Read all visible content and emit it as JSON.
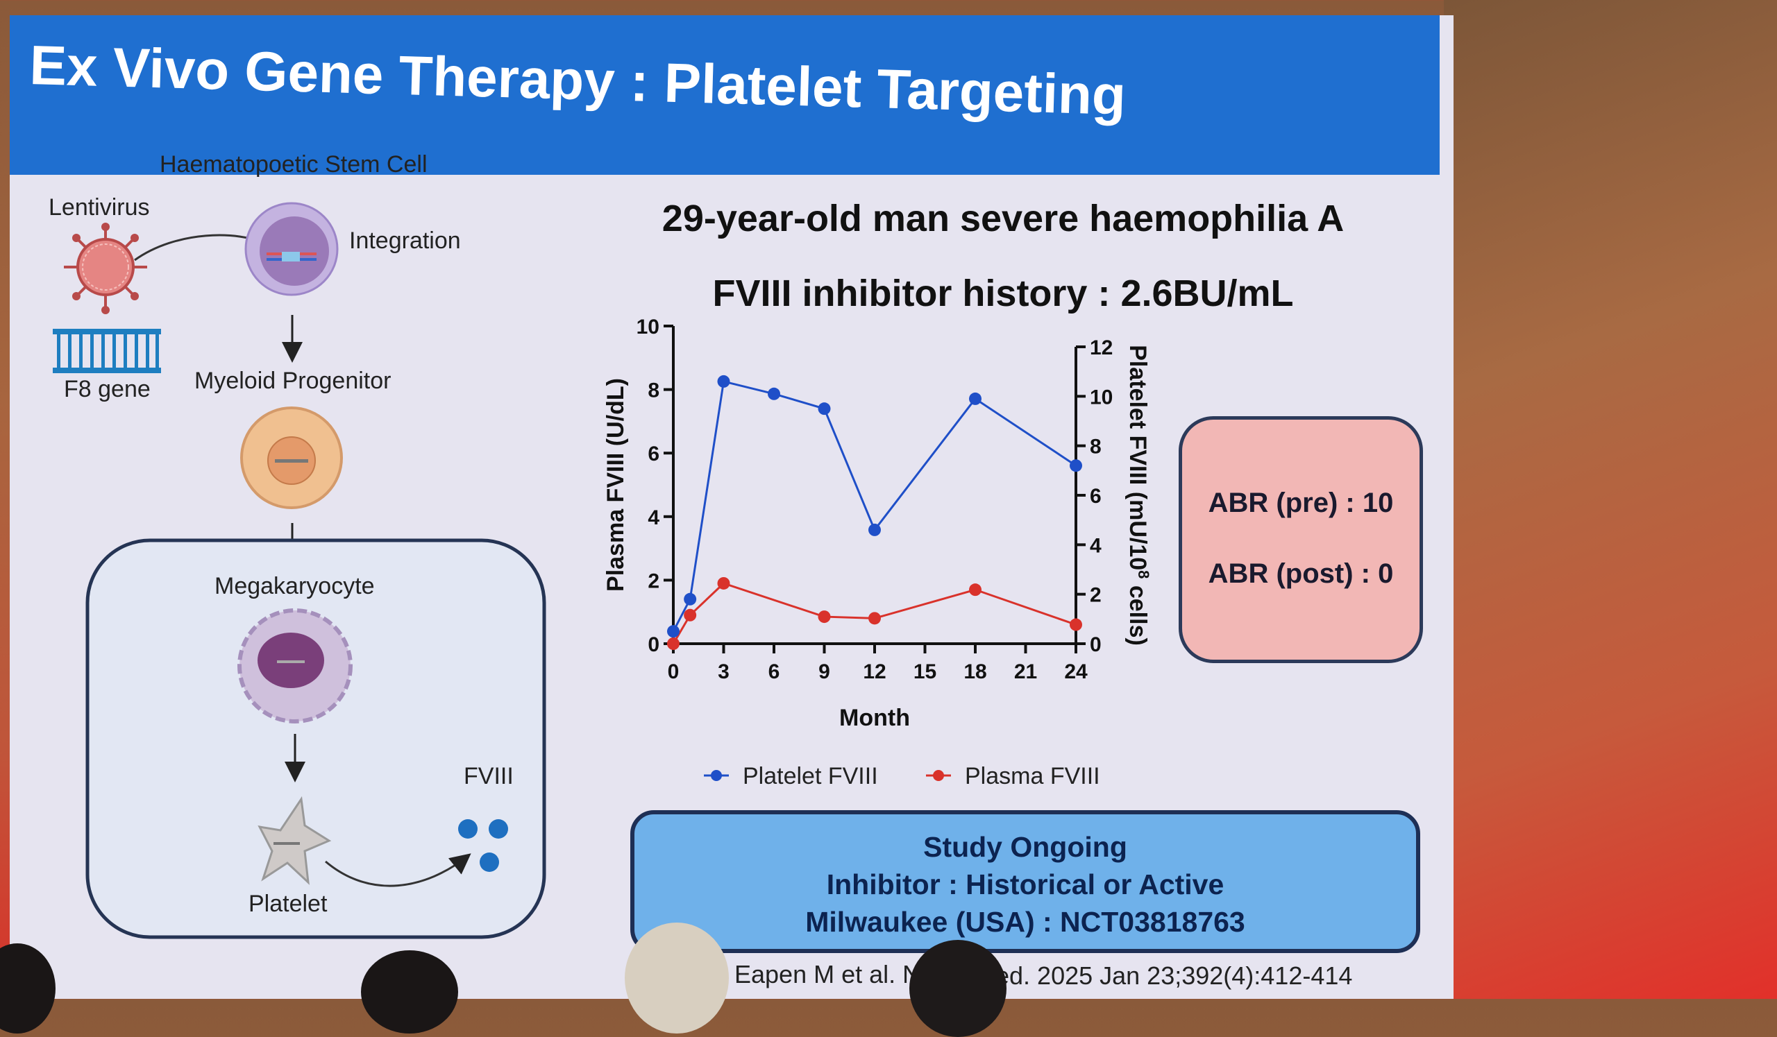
{
  "slide": {
    "title": "Ex Vivo Gene Therapy : Platelet Targeting",
    "subtitle": "29-year-old man severe haemophilia A",
    "inhibitor_history": "FVIII inhibitor history : 2.6BU/mL"
  },
  "diagram": {
    "hsc_label": "Haematopoetic Stem Cell",
    "lentivirus_label": "Lentivirus",
    "integration_label": "Integration",
    "f8_gene_label": "F8 gene",
    "myeloid_label": "Myeloid Progenitor",
    "megakaryocyte_label": "Megakaryocyte",
    "platelet_label": "Platelet",
    "fviii_label": "FVIII"
  },
  "abr": {
    "pre": "ABR (pre) : 10",
    "post": "ABR (post) : 0"
  },
  "study": {
    "line1": "Study Ongoing",
    "line2": "Inhibitor : Historical or Active",
    "line3": "Milwaukee (USA) : NCT03818763"
  },
  "citation": {
    "part1": "Eapen M et al. N",
    "part2": "ed. 2025 Jan 23;392(4):412-414"
  },
  "chart_data": {
    "type": "line",
    "xlabel": "Month",
    "ylabel_left": "Plasma FVIII (U/dL)",
    "ylabel_right_prefix": "Platelet FVIII  (mU/10",
    "ylabel_right_sup": "8",
    "ylabel_right_suffix": " cells)",
    "x_ticks": [
      0,
      3,
      6,
      9,
      12,
      15,
      18,
      21,
      24
    ],
    "y_left_ticks": [
      0,
      2,
      4,
      6,
      8,
      10
    ],
    "y_right_ticks": [
      0,
      2,
      4,
      6,
      8,
      10,
      12
    ],
    "xlim": [
      0,
      24
    ],
    "ylim_left": [
      0,
      10
    ],
    "ylim_right": [
      0,
      12
    ],
    "legend_position": "bottom",
    "series": [
      {
        "name": "Platelet FVIII",
        "axis": "right",
        "color": "#1f4fc8",
        "x": [
          0,
          1,
          3,
          6,
          9,
          12,
          18,
          24
        ],
        "y": [
          0.5,
          1.8,
          10.6,
          10.1,
          9.5,
          4.6,
          9.9,
          7.2
        ]
      },
      {
        "name": "Plasma FVIII",
        "axis": "left",
        "color": "#d9322b",
        "x": [
          0,
          1,
          3,
          9,
          12,
          18,
          24
        ],
        "y": [
          0,
          0.9,
          1.9,
          0.85,
          0.8,
          1.7,
          0.6
        ]
      }
    ]
  }
}
